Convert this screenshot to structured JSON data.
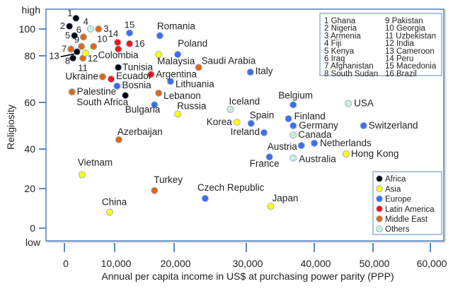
{
  "chart_data": {
    "type": "scatter",
    "xlabel": "Annual per capita income in US$ at purchasing power parity (PPP)",
    "ylabel": "Religiosity",
    "y_high_label": "high",
    "y_low_label": "low",
    "xlim": [
      0,
      60000
    ],
    "ylim": [
      0,
      100
    ],
    "x_ticks": [
      "0",
      "10,000",
      "20,000",
      "30,000",
      "40,000",
      "50,000",
      "60,000"
    ],
    "y_ticks": [
      "100",
      "80",
      "60",
      "40",
      "20",
      "0"
    ],
    "grid": false,
    "legend_placement": "bottom-right",
    "region_colors": {
      "Africa": "#000000",
      "Asia": "#ffff00",
      "Europe": "#3b6ef2",
      "Latin America": "#ff1010",
      "Middle East": "#e06810",
      "Others": "#c8f0d8"
    },
    "legend": [
      "Africa",
      "Asia",
      "Europe",
      "Latin America",
      "Middle East",
      "Others"
    ],
    "number_key": [
      "1 Ghana",
      "2 Nigeria",
      "3 Armenia",
      "4 Fiji",
      "5 Kenya",
      "6 Iraq",
      "7 Afghanistan",
      "8 South Sudan",
      "9 Pakistan",
      "10 Georgia",
      "11 Uzbekistan",
      "12 India",
      "13 Cameroon",
      "14 Peru",
      "15 Macedonia",
      "16 Brazil"
    ],
    "points": [
      {
        "label": "1",
        "country": "Ghana",
        "region": "Africa",
        "x": 2300,
        "y": 108
      },
      {
        "label": "2",
        "country": "Nigeria",
        "region": "Africa",
        "x": 1000,
        "y": 102
      },
      {
        "label": "3",
        "country": "Armenia",
        "region": "Middle East",
        "x": 6800,
        "y": 100
      },
      {
        "label": "4",
        "country": "Fiji",
        "region": "Others",
        "x": 5200,
        "y": 100
      },
      {
        "label": "5",
        "country": "Kenya",
        "region": "Africa",
        "x": 2000,
        "y": 95
      },
      {
        "label": "6",
        "country": "Iraq",
        "region": "Middle East",
        "x": 3800,
        "y": 94
      },
      {
        "label": "7",
        "country": "Afghanistan",
        "region": "Middle East",
        "x": 1300,
        "y": 85
      },
      {
        "label": "8",
        "country": "South Sudan",
        "region": "Africa",
        "x": 1700,
        "y": 79
      },
      {
        "label": "9",
        "country": "Pakistan",
        "region": "Middle East",
        "x": 3400,
        "y": 87
      },
      {
        "label": "10",
        "country": "Georgia",
        "region": "Middle East",
        "x": 5800,
        "y": 87
      },
      {
        "label": "11",
        "country": "Uzbekistan",
        "region": "Middle East",
        "x": 3700,
        "y": 79
      },
      {
        "label": "12",
        "country": "India",
        "region": "Asia",
        "x": 4200,
        "y": 82
      },
      {
        "label": "13",
        "country": "Cameroon",
        "region": "Africa",
        "x": 2500,
        "y": 83
      },
      {
        "label": "14",
        "country": "Peru",
        "region": "Latin America",
        "x": 10500,
        "y": 90
      },
      {
        "label": "15",
        "country": "Macedonia",
        "region": "Europe",
        "x": 12500,
        "y": 97
      },
      {
        "label": "16",
        "country": "Brazil",
        "region": "Latin America",
        "x": 12500,
        "y": 89
      },
      {
        "label": "Colombia",
        "region": "Latin America",
        "x": 10600,
        "y": 85
      },
      {
        "label": "Romania",
        "region": "Europe",
        "x": 17600,
        "y": 95
      },
      {
        "label": "Poland",
        "region": "Europe",
        "x": 20500,
        "y": 81
      },
      {
        "label": "Malaysia",
        "region": "Asia",
        "x": 17400,
        "y": 81
      },
      {
        "label": "Tunisia",
        "region": "Africa",
        "x": 10600,
        "y": 75
      },
      {
        "label": "Ukraine",
        "region": "Middle East",
        "x": 7600,
        "y": 71
      },
      {
        "label": "Ecuador",
        "region": "Latin America",
        "x": 9300,
        "y": 70
      },
      {
        "label": "Argentina",
        "region": "Latin America",
        "x": 16100,
        "y": 72
      },
      {
        "label": "Lithuania",
        "region": "Europe",
        "x": 19400,
        "y": 69
      },
      {
        "label": "Bosnia",
        "region": "Europe",
        "x": 10400,
        "y": 67
      },
      {
        "label": "Palestine",
        "region": "Middle East",
        "x": 1500,
        "y": 64.5
      },
      {
        "label": "Lebanon",
        "region": "Middle East",
        "x": 17400,
        "y": 64
      },
      {
        "label": "South Africa",
        "region": "Africa",
        "x": 11800,
        "y": 63
      },
      {
        "label": "Bulgaria",
        "region": "Europe",
        "x": 16700,
        "y": 59
      },
      {
        "label": "Russia",
        "region": "Asia",
        "x": 20500,
        "y": 55
      },
      {
        "label": "Saudi Arabia",
        "region": "Middle East",
        "x": 23400,
        "y": 75
      },
      {
        "label": "Italy",
        "region": "Europe",
        "x": 30600,
        "y": 73
      },
      {
        "label": "Azerbaijan",
        "region": "Middle East",
        "x": 10700,
        "y": 44
      },
      {
        "label": "Vietnam",
        "region": "Asia",
        "x": 3500,
        "y": 27
      },
      {
        "label": "Turkey",
        "region": "Middle East",
        "x": 16700,
        "y": 19
      },
      {
        "label": "China",
        "region": "Asia",
        "x": 9000,
        "y": 8
      },
      {
        "label": "Czech Republic",
        "region": "Europe",
        "x": 24300,
        "y": 15
      },
      {
        "label": "Iceland",
        "region": "Others",
        "x": 27800,
        "y": 57
      },
      {
        "label": "Korea",
        "region": "Asia",
        "x": 28700,
        "y": 51.5
      },
      {
        "label": "Spain",
        "region": "Europe",
        "x": 30700,
        "y": 51
      },
      {
        "label": "Ireland",
        "region": "Europe",
        "x": 32600,
        "y": 47
      },
      {
        "label": "Belgium",
        "region": "Europe",
        "x": 36900,
        "y": 59
      },
      {
        "label": "Finland",
        "region": "Europe",
        "x": 36200,
        "y": 53
      },
      {
        "label": "Germany",
        "region": "Europe",
        "x": 36900,
        "y": 50
      },
      {
        "label": "Canada",
        "region": "Others",
        "x": 36900,
        "y": 46
      },
      {
        "label": "Austria",
        "region": "Europe",
        "x": 38100,
        "y": 41.5
      },
      {
        "label": "Netherlands",
        "region": "Europe",
        "x": 40000,
        "y": 42.5
      },
      {
        "label": "France",
        "region": "Europe",
        "x": 33400,
        "y": 36
      },
      {
        "label": "Australia",
        "region": "Others",
        "x": 36900,
        "y": 35.5
      },
      {
        "label": "Hong Kong",
        "region": "Asia",
        "x": 45400,
        "y": 37.5
      },
      {
        "label": "USA",
        "region": "Others",
        "x": 45800,
        "y": 59.5
      },
      {
        "label": "Switzerland",
        "region": "Europe",
        "x": 48400,
        "y": 50
      },
      {
        "label": "Japan",
        "region": "Asia",
        "x": 33600,
        "y": 11
      }
    ]
  }
}
